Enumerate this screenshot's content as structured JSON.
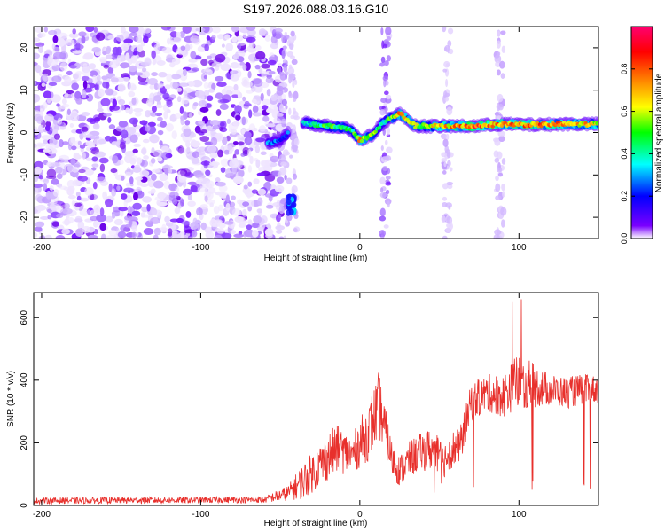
{
  "title": "S197.2026.088.03.16.G10",
  "colors": {
    "snr_line": "#e8302c",
    "axis": "#000000"
  },
  "chart_data": [
    {
      "type": "heatmap",
      "name": "spectrogram",
      "xlabel": "Height of straight line (km)",
      "ylabel": "Frequency (Hz)",
      "xlim": [
        -205,
        150
      ],
      "ylim": [
        -25,
        25
      ],
      "xticks": [
        -200,
        -100,
        0,
        100
      ],
      "yticks": [
        -20,
        -10,
        0,
        10,
        20
      ],
      "xtick_labels": [
        "-200",
        "-100",
        "0",
        "100"
      ],
      "ytick_labels": [
        "-20",
        "-10",
        "0",
        "10",
        "20"
      ],
      "colorbar": {
        "label": "Normalized spectral amplitude",
        "range": [
          0,
          1
        ],
        "ticks": [
          0,
          0.2,
          0.4,
          0.6,
          0.8
        ],
        "tick_labels": [
          "0.0",
          "0.2",
          "0.4",
          "0.6",
          "0.8"
        ],
        "colormap": [
          "#ffffff",
          "#7a00ff",
          "#0000ff",
          "#00ffff",
          "#00ff00",
          "#ffff00",
          "#ff8000",
          "#ff0000",
          "#ff0070"
        ]
      },
      "ridge": {
        "description": "dominant frequency track vs height",
        "x": [
          -57,
          -50,
          -38,
          -30,
          -20,
          -10,
          -5,
          0,
          8,
          15,
          25,
          35,
          50,
          70,
          90,
          110,
          130,
          150
        ],
        "freq": [
          -2.5,
          -2,
          2.5,
          2,
          1.5,
          1.2,
          0.5,
          -1.8,
          -0.5,
          2.5,
          4.5,
          1.5,
          1.5,
          1.5,
          2,
          1.8,
          2,
          2
        ],
        "amplitude": [
          0.35,
          0.3,
          0.35,
          0.45,
          0.55,
          0.55,
          0.5,
          0.75,
          0.6,
          0.45,
          0.75,
          0.6,
          0.7,
          0.9,
          0.8,
          0.85,
          0.75,
          0.7
        ]
      }
    },
    {
      "type": "line",
      "name": "snr",
      "xlabel": "Height of straight line (km)",
      "ylabel": "SNR (10 * v/v)",
      "xlim": [
        -205,
        150
      ],
      "ylim": [
        0,
        680
      ],
      "xticks": [
        -200,
        -100,
        0,
        100
      ],
      "yticks": [
        0,
        200,
        400,
        600
      ],
      "xtick_labels": [
        "-200",
        "-100",
        "0",
        "100"
      ],
      "ytick_labels": [
        "0",
        "200",
        "400",
        "600"
      ],
      "envelope": {
        "x": [
          -205,
          -60,
          -45,
          -35,
          -25,
          -15,
          -5,
          0,
          5,
          12,
          15,
          20,
          25,
          32,
          38,
          45,
          52,
          58,
          63,
          70,
          80,
          90,
          100,
          110,
          120,
          130,
          140,
          150
        ],
        "mean": [
          15,
          18,
          40,
          80,
          130,
          180,
          160,
          200,
          230,
          320,
          260,
          150,
          110,
          150,
          170,
          180,
          140,
          180,
          190,
          330,
          360,
          350,
          400,
          380,
          370,
          360,
          370,
          370
        ],
        "spread": [
          10,
          10,
          25,
          60,
          70,
          80,
          60,
          80,
          90,
          110,
          80,
          60,
          50,
          60,
          60,
          70,
          60,
          60,
          60,
          60,
          60,
          70,
          90,
          70,
          50,
          50,
          50,
          45
        ]
      }
    }
  ]
}
